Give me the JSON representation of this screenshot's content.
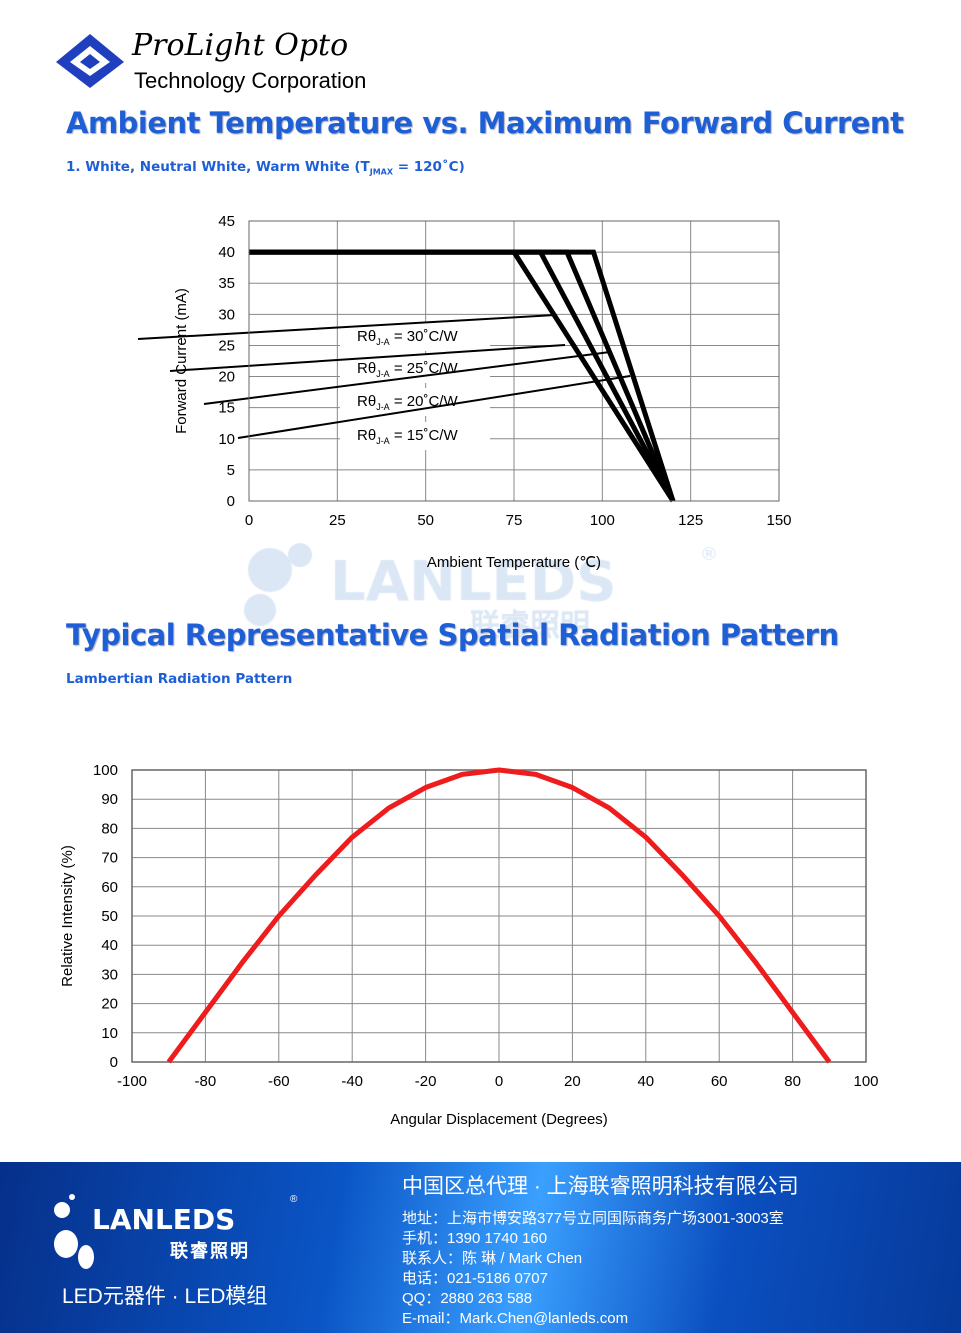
{
  "header": {
    "logo_line1": "ProLight Opto",
    "logo_line2": "Technology Corporation"
  },
  "section1": {
    "title": "Ambient Temperature vs. Maximum Forward Current",
    "subtitle": "1. White, Neutral White, Warm White (T",
    "subtitle_sub": "JMAX",
    "subtitle_end": " = 120˚C)"
  },
  "section2": {
    "title": "Typical Representative Spatial Radiation Pattern",
    "subtitle": "Lambertian Radiation Pattern"
  },
  "watermark": {
    "text": "LANLEDS",
    "cn": "联睿照明",
    "reg": "®"
  },
  "chart_data": [
    {
      "type": "line",
      "title": "Ambient Temperature vs. Maximum Forward Current",
      "xlabel": "Ambient Temperature (℃)",
      "ylabel": "Forward Current (mA)",
      "xlim": [
        0,
        150
      ],
      "ylim": [
        0,
        45
      ],
      "xticks": [
        "0",
        "25",
        "50",
        "75",
        "100",
        "125",
        "150"
      ],
      "yticks": [
        "0",
        "5",
        "10",
        "15",
        "20",
        "25",
        "30",
        "35",
        "40",
        "45"
      ],
      "grid": true,
      "series": [
        {
          "name": "Rθ J-A = 30˚C/W",
          "x": [
            0,
            75,
            120
          ],
          "y": [
            40,
            40,
            0
          ]
        },
        {
          "name": "Rθ J-A = 25˚C/W",
          "x": [
            0,
            82.5,
            120
          ],
          "y": [
            40,
            40,
            0
          ]
        },
        {
          "name": "Rθ J-A = 20˚C/W",
          "x": [
            0,
            90,
            120
          ],
          "y": [
            40,
            40,
            0
          ]
        },
        {
          "name": "Rθ J-A = 15˚C/W",
          "x": [
            0,
            97.5,
            120
          ],
          "y": [
            40,
            40,
            0
          ]
        }
      ],
      "labels": [
        {
          "pre": "Rθ",
          "sub": "J-A",
          "post": " = 30˚C/W"
        },
        {
          "pre": "Rθ",
          "sub": "J-A",
          "post": " = 25˚C/W"
        },
        {
          "pre": "Rθ",
          "sub": "J-A",
          "post": " = 20˚C/W"
        },
        {
          "pre": "Rθ",
          "sub": "J-A",
          "post": " = 15˚C/W"
        }
      ]
    },
    {
      "type": "line",
      "title": "Lambertian Radiation Pattern",
      "xlabel": "Angular Displacement (Degrees)",
      "ylabel": "Relative Intensity (%)",
      "xlim": [
        -100,
        100
      ],
      "ylim": [
        0,
        100
      ],
      "xticks": [
        "-100",
        "-80",
        "-60",
        "-40",
        "-20",
        "0",
        "20",
        "40",
        "60",
        "80",
        "100"
      ],
      "yticks": [
        "0",
        "10",
        "20",
        "30",
        "40",
        "50",
        "60",
        "70",
        "80",
        "90",
        "100"
      ],
      "grid": true,
      "color": "#ee1c1c",
      "series": [
        {
          "name": "Relative Intensity",
          "x": [
            -90,
            -80,
            -70,
            -60,
            -50,
            -40,
            -30,
            -20,
            -10,
            0,
            10,
            20,
            30,
            40,
            50,
            60,
            70,
            80,
            90
          ],
          "y": [
            0,
            17,
            34,
            50,
            64,
            77,
            87,
            94,
            98.5,
            100,
            98.5,
            94,
            87,
            77,
            64,
            50,
            34,
            17,
            0
          ]
        }
      ]
    }
  ],
  "footer": {
    "logo": "LANLEDS",
    "logo_cn": "联睿照明",
    "reg": "®",
    "tagline": "LED元器件 · LED模组",
    "company": "中国区总代理 · 上海联睿照明科技有限公司",
    "lines": [
      "地址：上海市博安路377号立同国际商务广场3001-3003室",
      "手机：1390 1740 160",
      "联系人：陈 琳 / Mark Chen",
      "电话：021-5186 0707",
      "QQ：2880 263 588",
      "E-mail：Mark.Chen@lanleds.com"
    ]
  }
}
